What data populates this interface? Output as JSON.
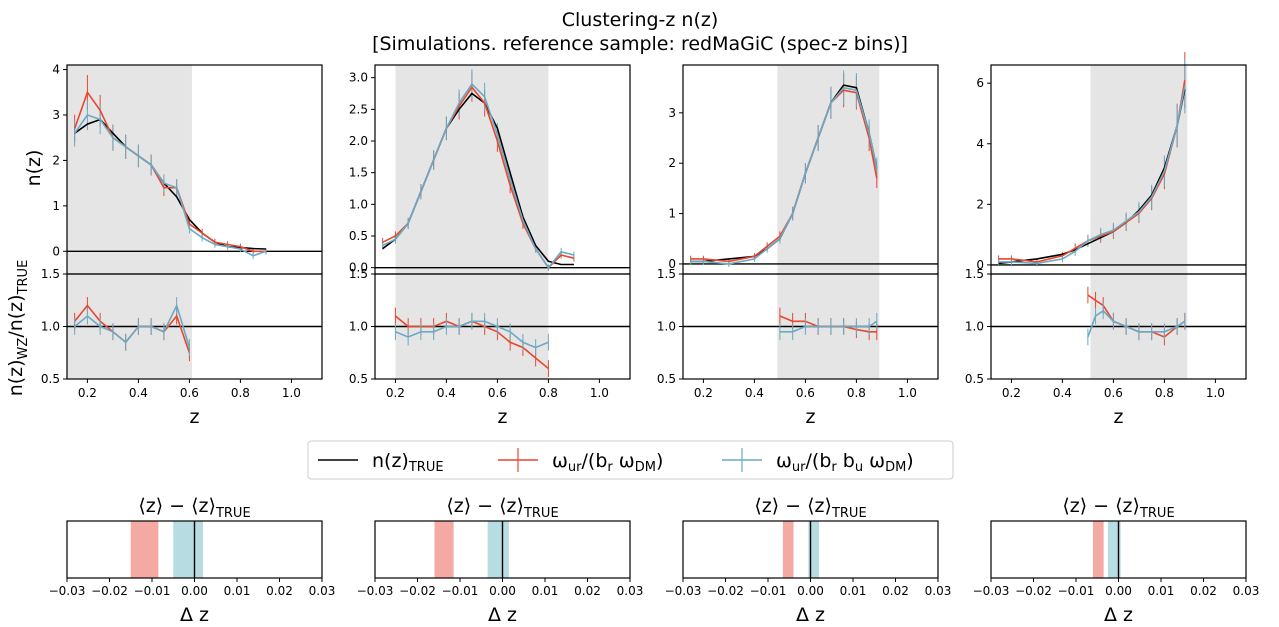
{
  "figure": {
    "title_line1": "Clustering-z n(z)",
    "title_line2": "[Simulations. reference sample: redMaGiC (spec-z bins)]",
    "ylabel_top": "n(z)",
    "ylabel_ratio_main": "n(z)",
    "ylabel_ratio_sub1": "WZ",
    "ylabel_ratio_mid": "/n(z)",
    "ylabel_ratio_sub2": "TRUE",
    "xlabel": "z",
    "dz_title_main": "⟨z⟩ − ⟨z⟩",
    "dz_title_sub": "TRUE",
    "dz_xlabel": "Δ z",
    "colors": {
      "true": "#000000",
      "wr": "#e8472e",
      "wrb": "#6aaac4",
      "shade": "#e5e5e5",
      "wr_band": "#f4aaa3",
      "wrb_band": "#b7dde3"
    }
  },
  "legend": {
    "true_main": "n(z)",
    "true_sub": "TRUE",
    "wr_main": "ω",
    "wr_sub1": "ur",
    "wr_mid": "/(b",
    "wr_sub2": "r",
    "wr_mid2": " ω",
    "wr_sub3": "DM",
    "wr_end": ")",
    "wrb_main": "ω",
    "wrb_sub1": "ur",
    "wrb_mid": "/(b",
    "wrb_sub2": "r",
    "wrb_mid2": " b",
    "wrb_sub3": "u",
    "wrb_mid3": " ω",
    "wrb_sub4": "DM",
    "wrb_end": ")"
  },
  "chart_data": [
    {
      "type": "line",
      "panel": "bin1",
      "xlim": [
        0.12,
        1.12
      ],
      "ylim_top": [
        -0.5,
        4.1
      ],
      "ylim_ratio": [
        0.5,
        1.5
      ],
      "xticks": [
        "0.2",
        "0.4",
        "0.6",
        "0.8",
        "1.0"
      ],
      "yticks_top": [
        "0",
        "1",
        "2",
        "3",
        "4"
      ],
      "yticks_ratio": [
        "0.5",
        "1.0",
        "1.5"
      ],
      "shade": [
        0.12,
        0.61
      ],
      "true": {
        "x": [
          0.15,
          0.2,
          0.25,
          0.3,
          0.35,
          0.4,
          0.45,
          0.5,
          0.55,
          0.6,
          0.65,
          0.7,
          0.75,
          0.8,
          0.85,
          0.9
        ],
        "y": [
          2.6,
          2.8,
          2.9,
          2.6,
          2.3,
          2.1,
          1.9,
          1.5,
          1.2,
          0.7,
          0.4,
          0.2,
          0.1,
          0.08,
          0.06,
          0.05
        ]
      },
      "wr": {
        "x": [
          0.15,
          0.2,
          0.25,
          0.3,
          0.35,
          0.4,
          0.45,
          0.5,
          0.55,
          0.6,
          0.65,
          0.7,
          0.75,
          0.8,
          0.85,
          0.9
        ],
        "y": [
          2.7,
          3.5,
          3.1,
          2.5,
          2.3,
          2.1,
          1.9,
          1.4,
          1.4,
          0.6,
          0.4,
          0.2,
          0.15,
          0.1,
          0.0,
          0.0
        ],
        "err": 0.3
      },
      "wrb": {
        "x": [
          0.15,
          0.2,
          0.25,
          0.3,
          0.35,
          0.4,
          0.45,
          0.5,
          0.55,
          0.6,
          0.65,
          0.7,
          0.75,
          0.8,
          0.85,
          0.9
        ],
        "y": [
          2.6,
          3.0,
          2.9,
          2.5,
          2.3,
          2.1,
          1.9,
          1.5,
          1.4,
          0.5,
          0.3,
          0.15,
          0.1,
          0.05,
          -0.1,
          0.0
        ],
        "err": 0.3
      },
      "ratio_wr": {
        "x": [
          0.15,
          0.2,
          0.25,
          0.3,
          0.35,
          0.4,
          0.45,
          0.5,
          0.55,
          0.6
        ],
        "y": [
          1.05,
          1.2,
          1.05,
          0.95,
          0.85,
          1.0,
          1.0,
          0.95,
          1.1,
          0.75
        ]
      },
      "ratio_wrb": {
        "x": [
          0.15,
          0.2,
          0.25,
          0.3,
          0.35,
          0.4,
          0.45,
          0.5,
          0.55,
          0.6
        ],
        "y": [
          1.0,
          1.1,
          1.0,
          0.95,
          0.85,
          1.0,
          1.0,
          0.95,
          1.2,
          0.8
        ]
      },
      "dz_wr": [
        -0.015,
        -0.0085
      ],
      "dz_wrb": [
        -0.005,
        0.002
      ]
    },
    {
      "type": "line",
      "panel": "bin2",
      "xlim": [
        0.12,
        1.12
      ],
      "ylim_top": [
        -0.1,
        3.2
      ],
      "ylim_ratio": [
        0.5,
        1.5
      ],
      "xticks": [
        "0.2",
        "0.4",
        "0.6",
        "0.8",
        "1.0"
      ],
      "yticks_top": [
        "0.0",
        "0.5",
        "1.0",
        "1.5",
        "2.0",
        "2.5",
        "3.0"
      ],
      "yticks_ratio": [
        "0.5",
        "1.0",
        "1.5"
      ],
      "shade": [
        0.2,
        0.8
      ],
      "true": {
        "x": [
          0.15,
          0.2,
          0.25,
          0.3,
          0.35,
          0.4,
          0.45,
          0.5,
          0.55,
          0.6,
          0.65,
          0.7,
          0.75,
          0.8,
          0.85,
          0.9
        ],
        "y": [
          0.3,
          0.45,
          0.7,
          1.2,
          1.7,
          2.2,
          2.5,
          2.75,
          2.6,
          2.2,
          1.5,
          0.8,
          0.35,
          0.1,
          0.05,
          0.05
        ]
      },
      "wr": {
        "x": [
          0.15,
          0.2,
          0.25,
          0.3,
          0.35,
          0.4,
          0.45,
          0.5,
          0.55,
          0.6,
          0.65,
          0.7,
          0.75,
          0.8,
          0.85,
          0.9
        ],
        "y": [
          0.4,
          0.5,
          0.7,
          1.2,
          1.7,
          2.2,
          2.55,
          2.85,
          2.6,
          2.0,
          1.3,
          0.7,
          0.3,
          0.0,
          0.2,
          0.15
        ]
      },
      "wrb": {
        "x": [
          0.15,
          0.2,
          0.25,
          0.3,
          0.35,
          0.4,
          0.45,
          0.5,
          0.55,
          0.6,
          0.65,
          0.7,
          0.75,
          0.8,
          0.85,
          0.9
        ],
        "y": [
          0.35,
          0.45,
          0.7,
          1.2,
          1.7,
          2.2,
          2.6,
          2.9,
          2.7,
          2.1,
          1.4,
          0.75,
          0.3,
          0.0,
          0.25,
          0.2
        ]
      },
      "ratio_wr": {
        "x": [
          0.2,
          0.25,
          0.3,
          0.35,
          0.4,
          0.45,
          0.5,
          0.55,
          0.6,
          0.65,
          0.7,
          0.75,
          0.8
        ],
        "y": [
          1.1,
          1.0,
          1.0,
          1.0,
          1.05,
          1.0,
          1.05,
          1.0,
          0.95,
          0.85,
          0.8,
          0.7,
          0.6
        ]
      },
      "ratio_wrb": {
        "x": [
          0.2,
          0.25,
          0.3,
          0.35,
          0.4,
          0.45,
          0.5,
          0.55,
          0.6,
          0.65,
          0.7,
          0.75,
          0.8
        ],
        "y": [
          0.95,
          0.9,
          0.95,
          0.95,
          1.0,
          1.0,
          1.05,
          1.05,
          1.0,
          0.95,
          0.85,
          0.8,
          0.85
        ]
      },
      "dz_wr": [
        -0.016,
        -0.0115
      ],
      "dz_wrb": [
        -0.0035,
        0.0015
      ]
    },
    {
      "type": "line",
      "panel": "bin3",
      "xlim": [
        0.12,
        1.12
      ],
      "ylim_top": [
        -0.2,
        3.95
      ],
      "ylim_ratio": [
        0.5,
        1.5
      ],
      "xticks": [
        "0.2",
        "0.4",
        "0.6",
        "0.8",
        "1.0"
      ],
      "yticks_top": [
        "0",
        "1",
        "2",
        "3"
      ],
      "yticks_ratio": [
        "0.5",
        "1.0",
        "1.5"
      ],
      "shade": [
        0.49,
        0.89
      ],
      "true": {
        "x": [
          0.15,
          0.2,
          0.3,
          0.4,
          0.45,
          0.5,
          0.55,
          0.6,
          0.65,
          0.7,
          0.75,
          0.8,
          0.85,
          0.88
        ],
        "y": [
          0.05,
          0.05,
          0.1,
          0.15,
          0.3,
          0.5,
          1.0,
          1.8,
          2.5,
          3.2,
          3.55,
          3.5,
          2.6,
          1.9
        ]
      },
      "wr": {
        "x": [
          0.15,
          0.2,
          0.3,
          0.4,
          0.45,
          0.5,
          0.55,
          0.6,
          0.65,
          0.7,
          0.75,
          0.8,
          0.85,
          0.88
        ],
        "y": [
          0.1,
          0.1,
          0.05,
          0.15,
          0.35,
          0.55,
          1.0,
          1.8,
          2.5,
          3.2,
          3.45,
          3.4,
          2.5,
          1.7
        ]
      },
      "wrb": {
        "x": [
          0.15,
          0.2,
          0.3,
          0.4,
          0.45,
          0.5,
          0.55,
          0.6,
          0.65,
          0.7,
          0.75,
          0.8,
          0.85,
          0.88
        ],
        "y": [
          0.05,
          0.05,
          0.0,
          0.1,
          0.3,
          0.5,
          1.0,
          1.8,
          2.5,
          3.2,
          3.5,
          3.45,
          2.6,
          1.9
        ]
      },
      "ratio_wr": {
        "x": [
          0.5,
          0.55,
          0.6,
          0.65,
          0.7,
          0.75,
          0.8,
          0.85,
          0.88
        ],
        "y": [
          1.1,
          1.05,
          1.05,
          1.0,
          1.0,
          1.0,
          0.97,
          0.95,
          0.95
        ]
      },
      "ratio_wrb": {
        "x": [
          0.5,
          0.55,
          0.6,
          0.65,
          0.7,
          0.75,
          0.8,
          0.85,
          0.88
        ],
        "y": [
          0.95,
          0.95,
          1.0,
          1.0,
          1.0,
          1.0,
          1.0,
          1.0,
          1.05
        ]
      },
      "dz_wr": [
        -0.0065,
        -0.004
      ],
      "dz_wrb": [
        -0.0005,
        0.002
      ]
    },
    {
      "type": "line",
      "panel": "bin4",
      "xlim": [
        0.12,
        1.12
      ],
      "ylim_top": [
        -0.3,
        6.6
      ],
      "ylim_ratio": [
        0.5,
        1.5
      ],
      "xticks": [
        "0.2",
        "0.4",
        "0.6",
        "0.8",
        "1.0"
      ],
      "yticks_top": [
        "0",
        "2",
        "4",
        "6"
      ],
      "yticks_ratio": [
        "0.5",
        "1.0",
        "1.5"
      ],
      "shade": [
        0.51,
        0.89
      ],
      "true": {
        "x": [
          0.15,
          0.2,
          0.3,
          0.4,
          0.45,
          0.5,
          0.55,
          0.6,
          0.65,
          0.7,
          0.75,
          0.8,
          0.85,
          0.88
        ],
        "y": [
          0.05,
          0.1,
          0.2,
          0.35,
          0.5,
          0.7,
          0.9,
          1.1,
          1.4,
          1.8,
          2.3,
          3.2,
          4.6,
          5.8
        ]
      },
      "wr": {
        "x": [
          0.15,
          0.2,
          0.3,
          0.4,
          0.45,
          0.5,
          0.55,
          0.6,
          0.65,
          0.7,
          0.75,
          0.8,
          0.85,
          0.88
        ],
        "y": [
          0.2,
          0.2,
          0.1,
          0.3,
          0.55,
          0.8,
          0.95,
          1.1,
          1.4,
          1.7,
          2.2,
          3.0,
          4.6,
          6.1
        ]
      },
      "wrb": {
        "x": [
          0.15,
          0.2,
          0.3,
          0.4,
          0.45,
          0.5,
          0.55,
          0.6,
          0.65,
          0.7,
          0.75,
          0.8,
          0.85,
          0.88
        ],
        "y": [
          0.1,
          0.1,
          0.05,
          0.2,
          0.45,
          0.8,
          1.0,
          1.15,
          1.45,
          1.75,
          2.25,
          3.1,
          4.6,
          5.9
        ]
      },
      "ratio_wr": {
        "x": [
          0.5,
          0.53,
          0.56,
          0.6,
          0.65,
          0.7,
          0.75,
          0.8,
          0.85,
          0.88
        ],
        "y": [
          1.3,
          1.25,
          1.2,
          1.05,
          1.0,
          0.95,
          0.95,
          0.9,
          1.0,
          1.05
        ]
      },
      "ratio_wrb": {
        "x": [
          0.5,
          0.53,
          0.56,
          0.6,
          0.65,
          0.7,
          0.75,
          0.8,
          0.85,
          0.88
        ],
        "y": [
          0.9,
          1.1,
          1.15,
          1.05,
          1.0,
          0.95,
          0.95,
          0.95,
          1.0,
          1.05
        ]
      },
      "dz_wr": [
        -0.006,
        -0.0035
      ],
      "dz_wrb": [
        -0.0025,
        0.0005
      ]
    }
  ]
}
